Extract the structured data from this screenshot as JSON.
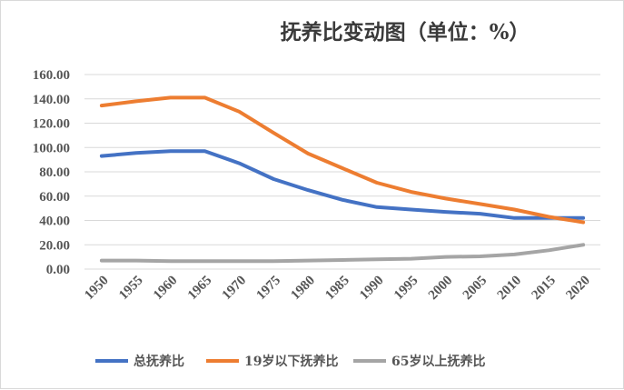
{
  "chart_data": {
    "type": "line",
    "title": "抚养比变动图（单位：%）",
    "x": [
      "1950",
      "1955",
      "1960",
      "1965",
      "1970",
      "1975",
      "1980",
      "1985",
      "1990",
      "1995",
      "2000",
      "2005",
      "2010",
      "2015",
      "2020"
    ],
    "ylim": [
      0,
      160
    ],
    "yticks": [
      "0.00",
      "20.00",
      "40.00",
      "60.00",
      "80.00",
      "100.00",
      "120.00",
      "140.00",
      "160.00"
    ],
    "grid": true,
    "legend_position": "bottom",
    "series": [
      {
        "name": "总抚养比",
        "color": "#4472c4",
        "values": [
          93,
          95.5,
          97,
          97,
          87,
          74,
          65,
          57,
          51,
          49,
          47,
          45.5,
          42,
          42,
          42
        ]
      },
      {
        "name": "19岁以下抚养比",
        "color": "#ed7d31",
        "values": [
          134.5,
          138,
          141,
          141,
          129.5,
          112,
          95,
          83,
          71,
          63.5,
          58,
          53.5,
          49,
          43,
          38.5
        ]
      },
      {
        "name": "65岁以上抚养比",
        "color": "#a5a5a5",
        "values": [
          7,
          7,
          6.5,
          6.5,
          6.5,
          6.5,
          7,
          7.5,
          8,
          8.5,
          10,
          10.5,
          12,
          15.5,
          20
        ]
      }
    ]
  }
}
